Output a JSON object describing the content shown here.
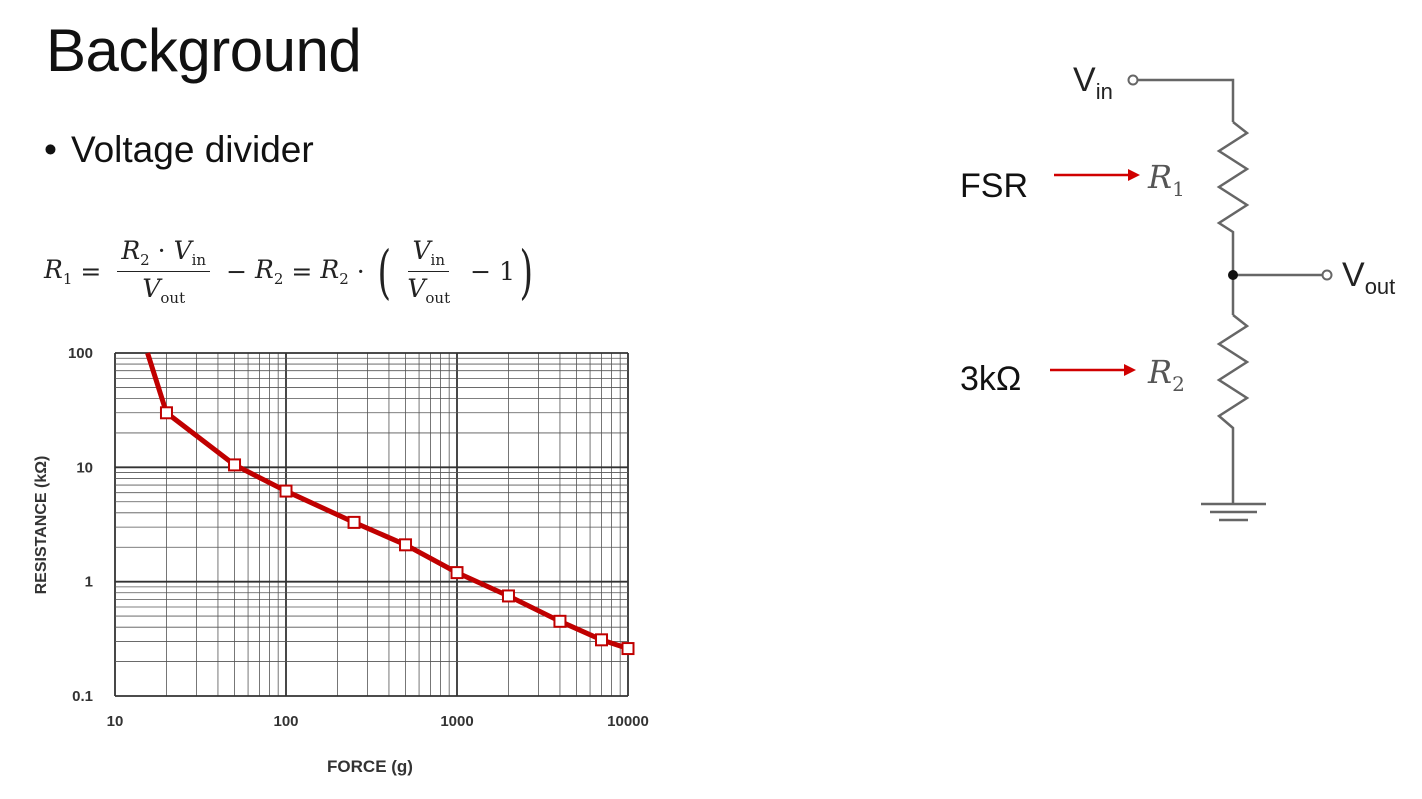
{
  "slide": {
    "title": "Background",
    "bullet": "Voltage divider",
    "bullet_marker": "•"
  },
  "formula": {
    "lhs": "R",
    "lhs_sub": "1",
    "eq": "=",
    "frac1_num_a": "R",
    "frac1_num_a_sub": "2",
    "dot": "·",
    "frac1_num_b": "V",
    "frac1_num_b_sub": "in",
    "frac1_den": "V",
    "frac1_den_sub": "out",
    "minus": "−",
    "r2": "R",
    "r2_sub": "2",
    "eq2": "=",
    "r2b": "R",
    "r2b_sub": "2",
    "dot2": "·",
    "lparen": "(",
    "frac2_num": "V",
    "frac2_num_sub": "in",
    "frac2_den": "V",
    "frac2_den_sub": "out",
    "minus2": "−",
    "one": "1",
    "rparen": ")"
  },
  "chart_data": {
    "type": "line",
    "xlabel": "FORCE (g)",
    "ylabel": "RESISTANCE (kΩ)",
    "xscale": "log",
    "yscale": "log",
    "xlim": [
      10,
      10000
    ],
    "ylim": [
      0.1,
      100
    ],
    "x_ticks": [
      "10",
      "100",
      "1000",
      "10000"
    ],
    "y_ticks": [
      "0.1",
      "1",
      "10",
      "100"
    ],
    "grid": true,
    "series": [
      {
        "x": [
          20,
          50,
          100,
          250,
          500,
          1000,
          2000,
          4000,
          7000,
          10000
        ],
        "values": [
          30,
          10.5,
          6.2,
          3.3,
          2.1,
          1.2,
          0.75,
          0.45,
          0.31,
          0.26
        ]
      }
    ],
    "curve_start": {
      "x": 15.5,
      "y": 100
    },
    "line_color": "#c00000",
    "marker_fill": "#ffffff"
  },
  "circuit": {
    "vin_label": "V",
    "vin_sub": "in",
    "vout_label": "V",
    "vout_sub": "out",
    "r1_label": "R",
    "r1_sub": "1",
    "r2_label": "R",
    "r2_sub": "2",
    "fsr_label": "FSR",
    "r2_value_label": "3kΩ",
    "arrow_color": "#d00000",
    "wire_color": "#666666"
  }
}
